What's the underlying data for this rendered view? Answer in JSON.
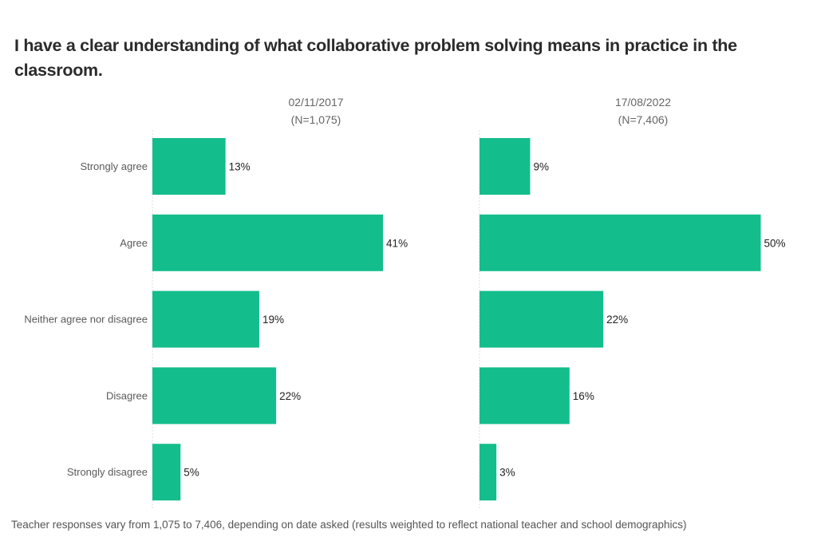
{
  "chart_data": {
    "type": "bar",
    "orientation": "horizontal",
    "title": "I have a clear understanding of what collaborative problem solving means in practice in the classroom.",
    "categories": [
      "Strongly agree",
      "Agree",
      "Neither agree nor disagree",
      "Disagree",
      "Strongly disagree"
    ],
    "series": [
      {
        "name": "02/11/2017",
        "n_label": "(N=1,075)",
        "values": [
          13,
          41,
          19,
          22,
          5
        ],
        "labels": [
          "13%",
          "41%",
          "19%",
          "22%",
          "5%"
        ]
      },
      {
        "name": "17/08/2022",
        "n_label": "(N=7,406)",
        "values": [
          9,
          50,
          22,
          16,
          3
        ],
        "labels": [
          "9%",
          "50%",
          "22%",
          "16%",
          "3%"
        ]
      }
    ],
    "unit": "%",
    "xlim": [
      0,
      50
    ],
    "grid": false,
    "bar_color": "#14bd8c",
    "footnote": "Teacher responses vary from 1,075 to 7,406, depending on date asked (results weighted to reflect national teacher and school demographics)"
  }
}
